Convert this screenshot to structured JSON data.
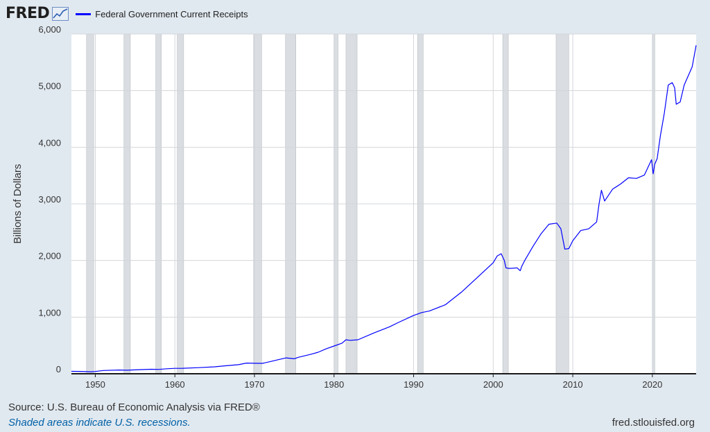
{
  "header": {
    "logo_text": "FRED",
    "logo_icon": "line-chart-icon"
  },
  "colors": {
    "background": "#e1e9f0",
    "plot_background": "#ffffff",
    "series_line": "#0000ff",
    "recession_fill": "#dadee2",
    "grid": "#d2d6da",
    "axis": "#1a1a1a",
    "note_text": "#0060a6"
  },
  "footer": {
    "source": "Source: U.S. Bureau of Economic Analysis via FRED®",
    "note": "Shaded areas indicate U.S. recessions.",
    "site": "fred.stlouisfed.org"
  },
  "chart_data": {
    "type": "line",
    "title": "",
    "xlabel": "",
    "ylabel": "Billions of Dollars",
    "xlim": [
      1947,
      2025.5
    ],
    "ylim": [
      0,
      6000
    ],
    "x_ticks": [
      1950,
      1960,
      1970,
      1980,
      1990,
      2000,
      2010,
      2020
    ],
    "y_ticks": [
      0,
      1000,
      2000,
      3000,
      4000,
      5000,
      6000
    ],
    "y_tick_labels": [
      "0",
      "1,000",
      "2,000",
      "3,000",
      "4,000",
      "5,000",
      "6,000"
    ],
    "grid": true,
    "legend_position": "top-left",
    "recessions": [
      [
        1948.9,
        1949.8
      ],
      [
        1953.6,
        1954.4
      ],
      [
        1957.6,
        1958.3
      ],
      [
        1960.3,
        1961.1
      ],
      [
        1969.9,
        1970.9
      ],
      [
        1973.9,
        1975.2
      ],
      [
        1980.0,
        1980.5
      ],
      [
        1981.5,
        1982.9
      ],
      [
        1990.5,
        1991.2
      ],
      [
        2001.2,
        2001.9
      ],
      [
        2007.9,
        2009.5
      ],
      [
        2020.0,
        2020.3
      ]
    ],
    "series": [
      {
        "name": "Federal Government Current Receipts",
        "x": [
          1947,
          1948,
          1949.5,
          1950,
          1951,
          1953,
          1954,
          1955,
          1957,
          1958,
          1959,
          1960,
          1961,
          1963,
          1965,
          1966,
          1968,
          1969,
          1970,
          1971,
          1972,
          1973,
          1974,
          1975,
          1975.5,
          1977,
          1978,
          1979,
          1980,
          1981,
          1981.5,
          1982,
          1983,
          1985,
          1987,
          1988,
          1990,
          1991,
          1992,
          1994,
          1996,
          1998,
          2000,
          2000.5,
          2001,
          2001.4,
          2001.6,
          2002,
          2003,
          2003.4,
          2003.6,
          2004,
          2005,
          2006,
          2007,
          2008,
          2008.5,
          2009,
          2009.5,
          2010,
          2011,
          2012,
          2013,
          2013.3,
          2013.6,
          2014,
          2015,
          2016,
          2017,
          2018,
          2019,
          2019.9,
          2020.1,
          2020.3,
          2020.6,
          2021,
          2021.5,
          2022,
          2022.5,
          2022.8,
          2023,
          2023.5,
          2024,
          2025,
          2025.5
        ],
        "values": [
          43,
          42,
          36,
          40,
          58,
          66,
          62,
          68,
          80,
          77,
          88,
          96,
          97,
          108,
          122,
          136,
          160,
          188,
          185,
          184,
          215,
          248,
          280,
          264,
          290,
          340,
          380,
          440,
          490,
          540,
          600,
          590,
          600,
          720,
          830,
          900,
          1030,
          1080,
          1110,
          1220,
          1440,
          1700,
          1960,
          2080,
          2120,
          2000,
          1870,
          1860,
          1870,
          1820,
          1900,
          2010,
          2250,
          2470,
          2640,
          2660,
          2560,
          2200,
          2210,
          2350,
          2530,
          2560,
          2680,
          3000,
          3240,
          3050,
          3260,
          3350,
          3460,
          3450,
          3510,
          3780,
          3530,
          3700,
          3800,
          4200,
          4600,
          5100,
          5140,
          5050,
          4760,
          4800,
          5100,
          5420,
          5800
        ]
      }
    ]
  }
}
